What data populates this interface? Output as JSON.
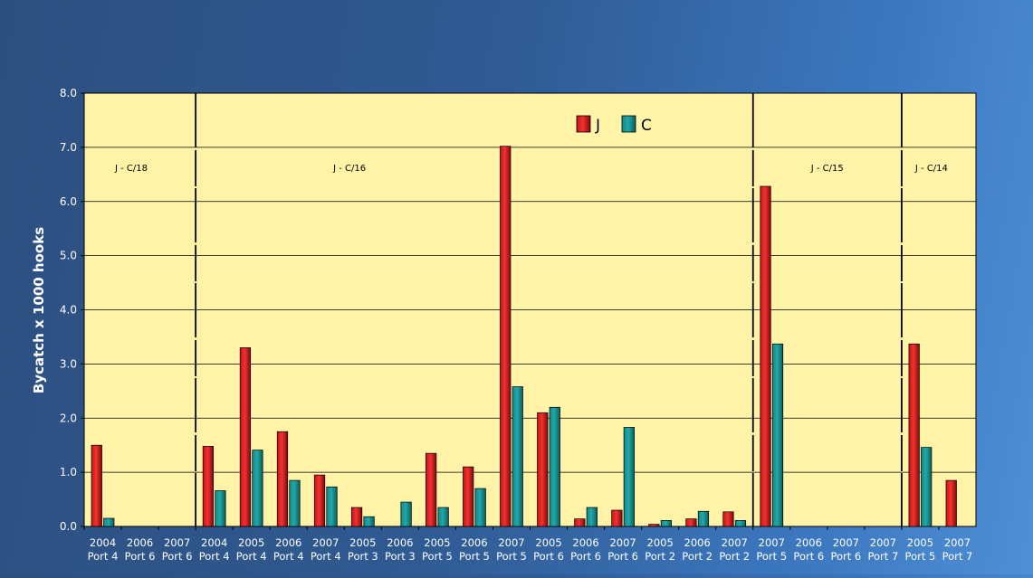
{
  "chart_data": {
    "type": "bar",
    "title": "",
    "xlabel": "",
    "ylabel": "Bycatch x 1000 hooks",
    "ylim": [
      0,
      8
    ],
    "yticks": [
      "0.0",
      "1.0",
      "2.0",
      "3.0",
      "4.0",
      "5.0",
      "6.0",
      "7.0",
      "8.0"
    ],
    "grid": true,
    "legend_position": "top-center",
    "categories": [
      {
        "year": "2004",
        "port": "Port 4"
      },
      {
        "year": "2006",
        "port": "Port 6"
      },
      {
        "year": "2007",
        "port": "Port 6"
      },
      {
        "year": "2004",
        "port": "Port 4"
      },
      {
        "year": "2005",
        "port": "Port 4"
      },
      {
        "year": "2006",
        "port": "Port 4"
      },
      {
        "year": "2007",
        "port": "Port 4"
      },
      {
        "year": "2005",
        "port": "Port 3"
      },
      {
        "year": "2006",
        "port": "Port 3"
      },
      {
        "year": "2005",
        "port": "Port 5"
      },
      {
        "year": "2006",
        "port": "Port 5"
      },
      {
        "year": "2007",
        "port": "Port 5"
      },
      {
        "year": "2005",
        "port": "Port 6"
      },
      {
        "year": "2006",
        "port": "Port 6"
      },
      {
        "year": "2007",
        "port": "Port 6"
      },
      {
        "year": "2005",
        "port": "Port 2"
      },
      {
        "year": "2006",
        "port": "Port 2"
      },
      {
        "year": "2007",
        "port": "Port 2"
      },
      {
        "year": "2007",
        "port": "Port 5"
      },
      {
        "year": "2006",
        "port": "Port 6"
      },
      {
        "year": "2007",
        "port": "Port 6"
      },
      {
        "year": "2007",
        "port": "Port 7"
      },
      {
        "year": "2005",
        "port": "Port 5"
      },
      {
        "year": "2007",
        "port": "Port 7"
      }
    ],
    "series": [
      {
        "name": "J",
        "color": "#cc1111",
        "values": [
          1.5,
          0,
          0,
          1.48,
          3.3,
          1.75,
          0.95,
          0.35,
          0,
          1.35,
          1.1,
          7.02,
          2.1,
          0.14,
          0.3,
          0.04,
          0.14,
          0.27,
          6.28,
          0,
          0,
          0,
          3.37,
          0.85
        ]
      },
      {
        "name": "C",
        "color": "#0f8a8a",
        "values": [
          0.15,
          0,
          0,
          0.66,
          1.41,
          0.85,
          0.73,
          0.18,
          0.45,
          0.35,
          0.7,
          2.58,
          2.2,
          0.35,
          1.83,
          0.11,
          0.28,
          0.11,
          3.37,
          0,
          0,
          0,
          1.46,
          0
        ]
      }
    ],
    "annotations": [
      {
        "text": "J - C/18",
        "after_category_index": null
      },
      {
        "text": "J - C/16",
        "after_category_index": 3
      },
      {
        "text": "J - C/15",
        "after_category_index": 18
      },
      {
        "text": "J - C/14",
        "after_category_index": 22
      }
    ],
    "group_divider_after_index": [
      2,
      17,
      21
    ],
    "plot_background": "#fff3a8"
  }
}
